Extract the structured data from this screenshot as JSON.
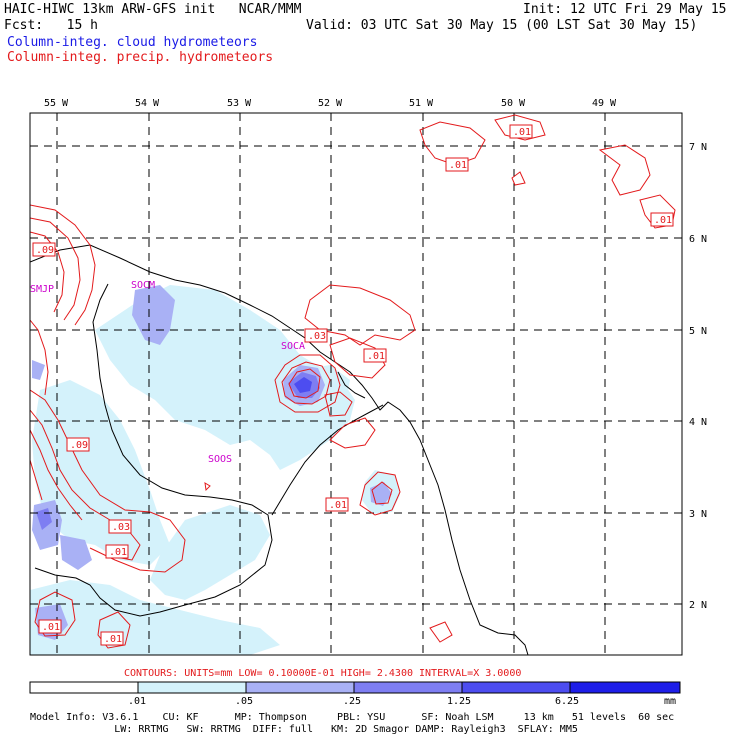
{
  "header": {
    "model_title": "HAIC-HIWC 13km ARW-GFS init   NCAR/MMM",
    "init": "Init: 12 UTC Fri 29 May 15",
    "fcst": "Fcst:   15 h",
    "valid": "Valid: 03 UTC Sat 30 May 15 (00 LST Sat 30 May 15)",
    "legend_cloud": "Column-integ. cloud hydrometeors",
    "legend_precip": "Column-integ. precip. hydrometeors"
  },
  "map": {
    "lon_labels": [
      "55 W",
      "54 W",
      "53 W",
      "52 W",
      "51 W",
      "50 W",
      "49 W"
    ],
    "lat_labels": [
      "7 N",
      "6 N",
      "5 N",
      "4 N",
      "3 N",
      "2 N"
    ],
    "stations": [
      "SMJP",
      "SOCM",
      "SOCA",
      "SOOS"
    ],
    "contour_labels": [
      ".01",
      ".01",
      ".01",
      ".09",
      ".03",
      ".01",
      ".09",
      ".03",
      ".01",
      ".01",
      ".01",
      ".01"
    ]
  },
  "contour_info": "CONTOURS:  UNITS=mm  LOW= 0.10000E-01  HIGH=  2.4300     INTERVAL=X  3.0000",
  "colorbar": {
    "ticks": [
      ".01",
      ".05",
      ".25",
      "1.25",
      "6.25"
    ],
    "unit": "mm",
    "colors": [
      "#ffffff",
      "#d4f2fb",
      "#a9b1f5",
      "#7e7ef2",
      "#4d4df0",
      "#1e1ee8"
    ]
  },
  "footer": {
    "line1": "Model Info: V3.6.1    CU: KF      MP: Thompson     PBL: YSU      SF: Noah LSM     13 km   51 levels  60 sec",
    "line2": "              LW: RRTMG   SW: RRTMG  DIFF: full   KM: 2D Smagor DAMP: Rayleigh3  SFLAY: MM5"
  }
}
